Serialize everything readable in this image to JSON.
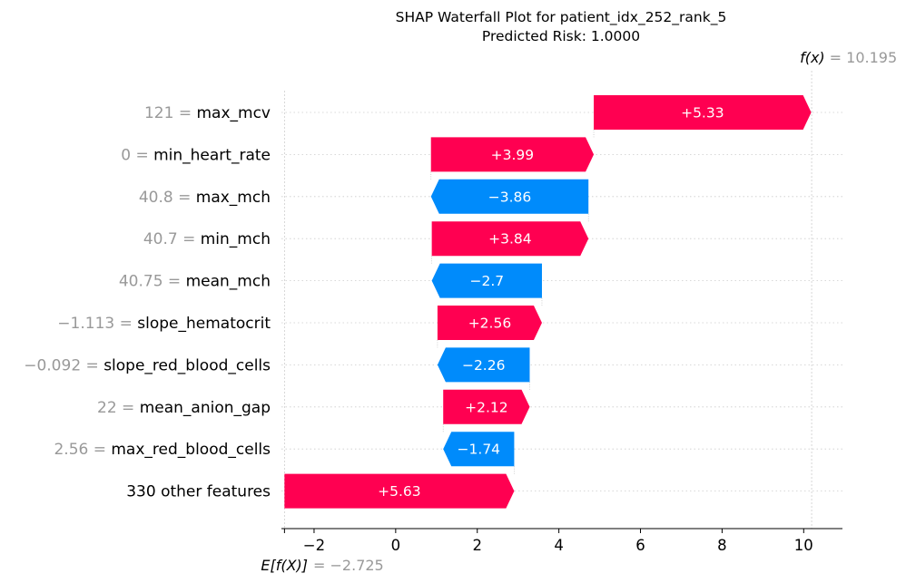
{
  "chart_data": {
    "type": "waterfall",
    "title": "SHAP Waterfall Plot for patient_idx_252_rank_5",
    "subtitle": "Predicted Risk: 1.0000",
    "base_value": -2.725,
    "base_label": "E[f(X)]",
    "base_value_text": "= −2.725",
    "final_value": 10.195,
    "final_label": "f(x)",
    "final_value_text": "= 10.195",
    "xlim": [
      -2.8,
      10.95
    ],
    "xticks": [
      -2,
      0,
      2,
      4,
      6,
      8,
      10
    ],
    "xtick_labels": [
      "−2",
      "0",
      "2",
      "4",
      "6",
      "8",
      "10"
    ],
    "features": [
      {
        "value_text": "121 =",
        "name": "max_mcv",
        "shap": 5.33,
        "label": "+5.33"
      },
      {
        "value_text": "0 =",
        "name": "min_heart_rate",
        "shap": 3.99,
        "label": "+3.99"
      },
      {
        "value_text": "40.8 =",
        "name": "max_mch",
        "shap": -3.86,
        "label": "−3.86"
      },
      {
        "value_text": "40.7 =",
        "name": "min_mch",
        "shap": 3.84,
        "label": "+3.84"
      },
      {
        "value_text": "40.75 =",
        "name": "mean_mch",
        "shap": -2.7,
        "label": "−2.7"
      },
      {
        "value_text": "−1.113 =",
        "name": "slope_hematocrit",
        "shap": 2.56,
        "label": "+2.56"
      },
      {
        "value_text": "−0.092 =",
        "name": "slope_red_blood_cells",
        "shap": -2.26,
        "label": "−2.26"
      },
      {
        "value_text": "22 =",
        "name": "mean_anion_gap",
        "shap": 2.12,
        "label": "+2.12"
      },
      {
        "value_text": "2.56 =",
        "name": "max_red_blood_cells",
        "shap": -1.74,
        "label": "−1.74"
      },
      {
        "value_text": "",
        "name": "330 other features",
        "shap": 5.63,
        "label": "+5.63"
      }
    ],
    "colors": {
      "positive": "#ff0051",
      "negative": "#008bfb",
      "grid": "#cccccc",
      "muted_text": "#999999"
    },
    "grid": true
  }
}
